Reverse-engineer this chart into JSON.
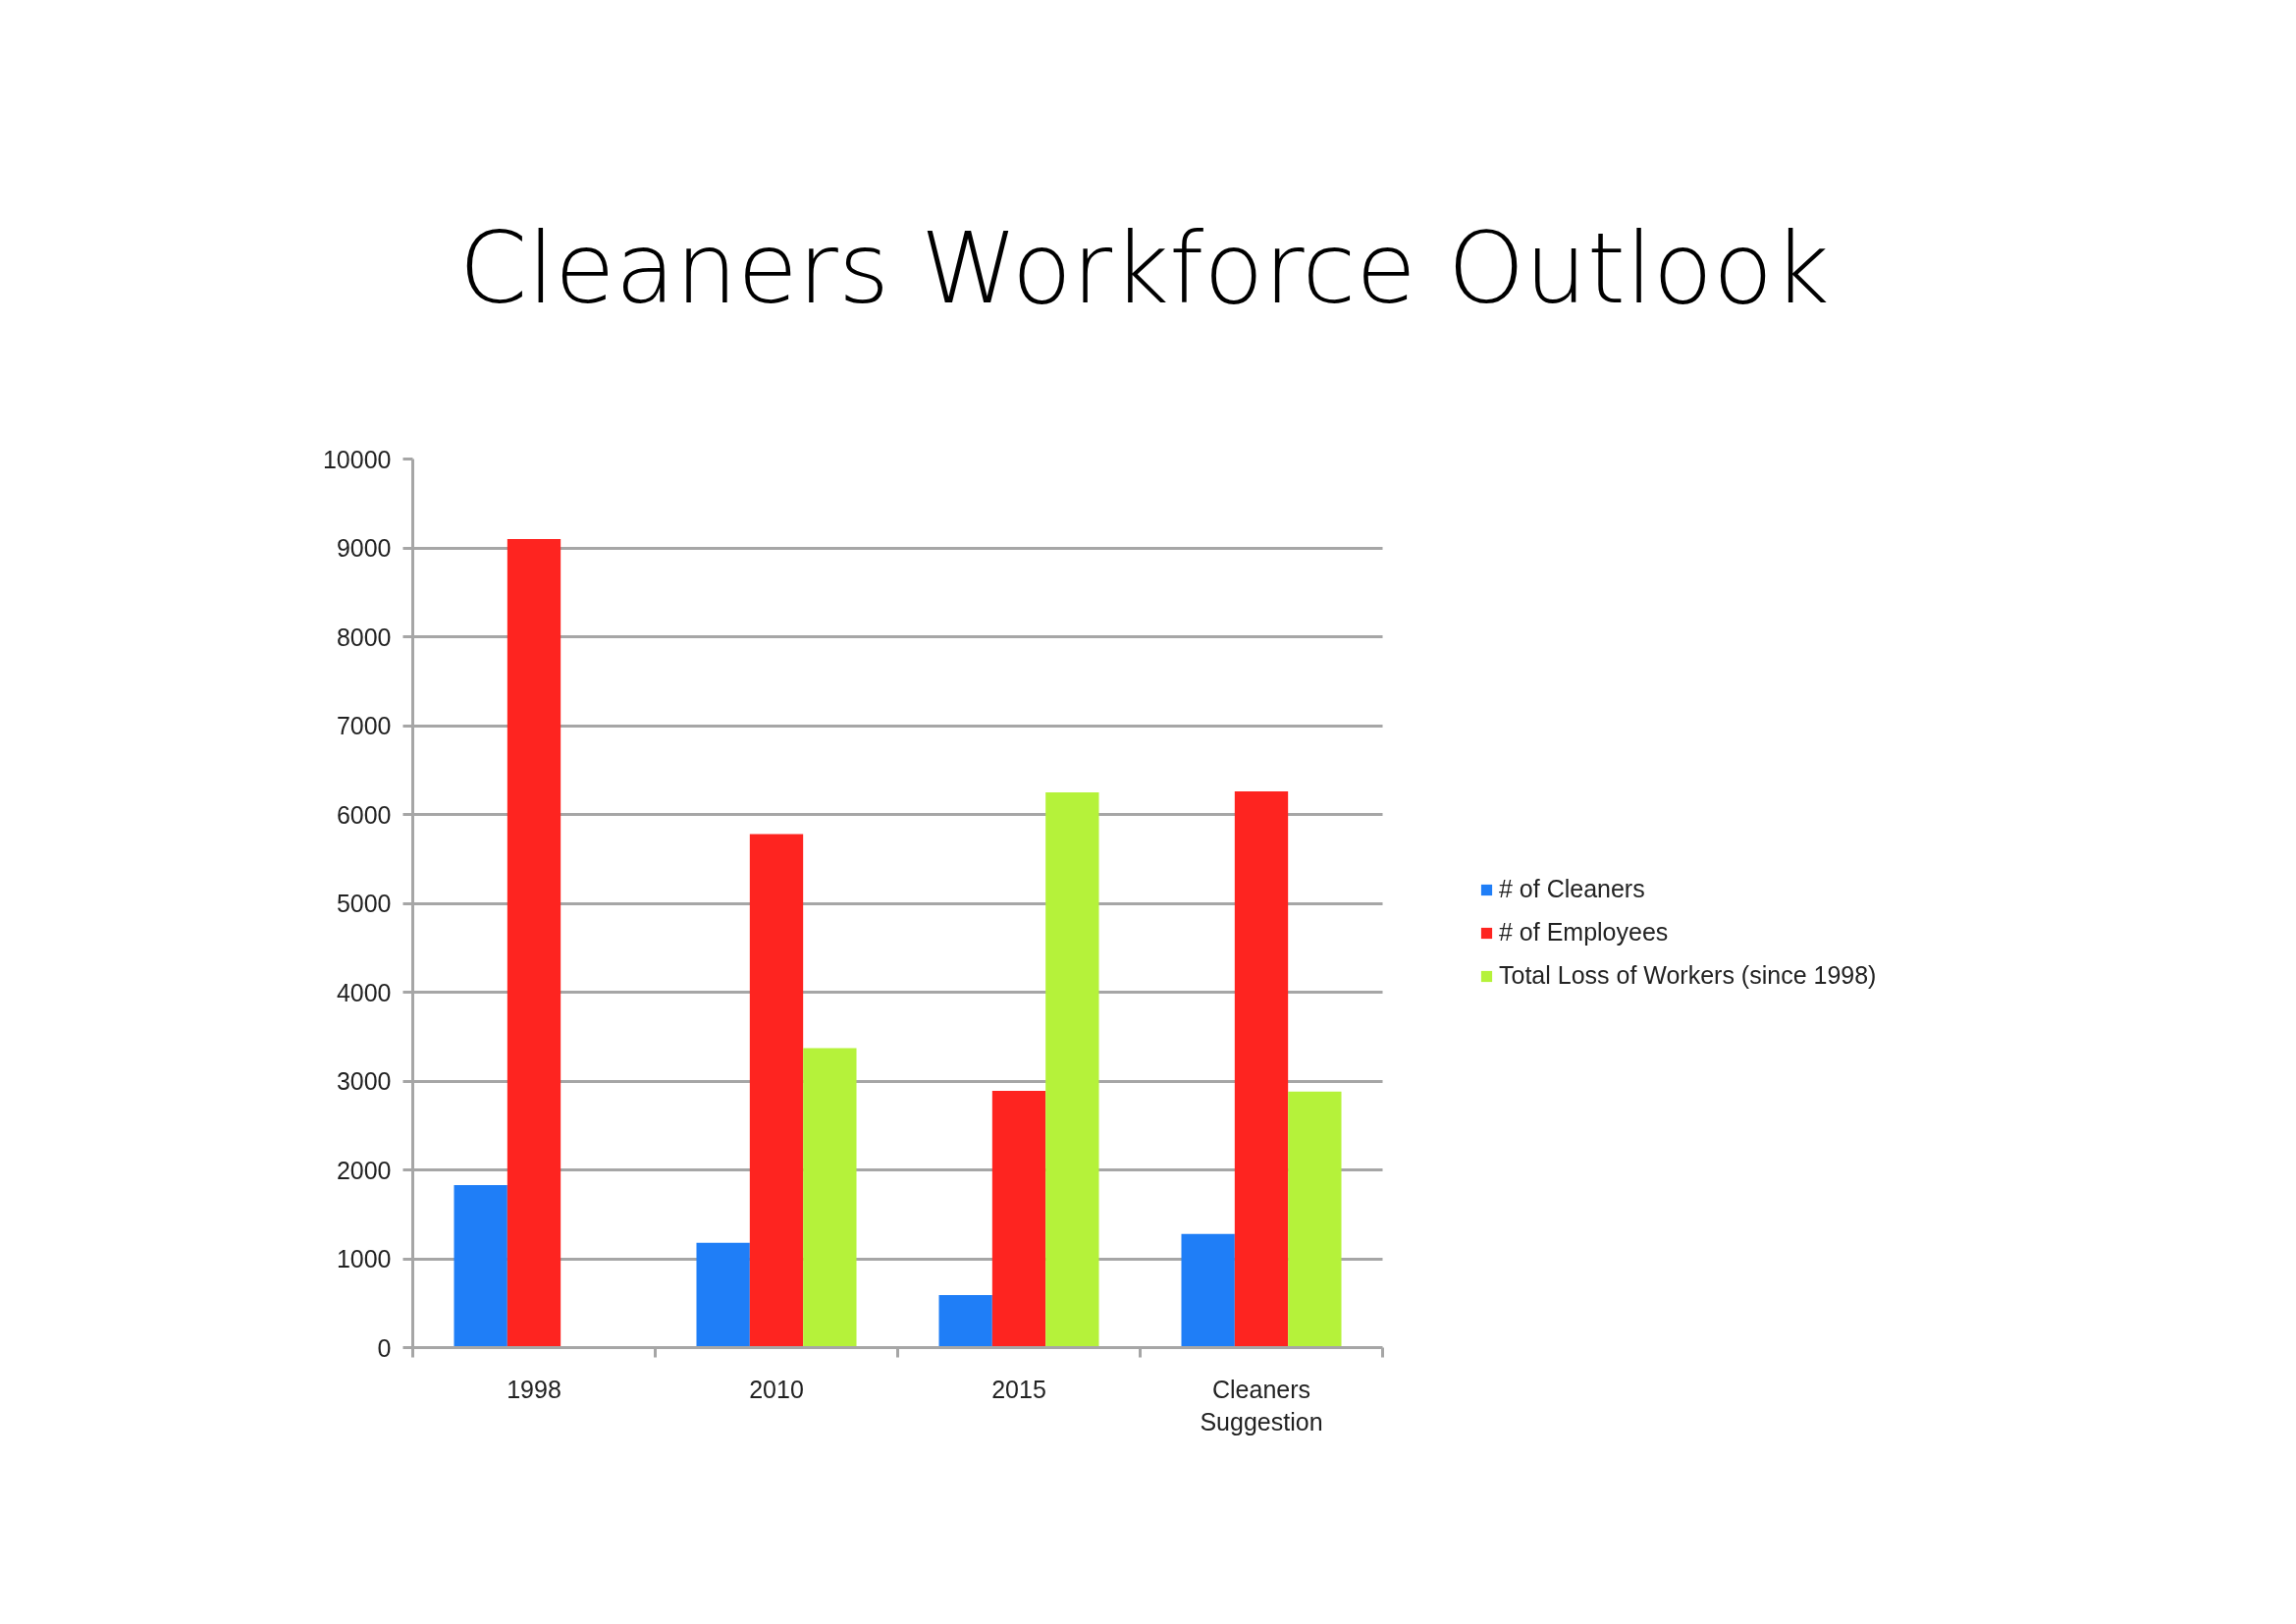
{
  "chart_data": {
    "type": "bar",
    "title": "Cleaners Workforce Outlook",
    "categories": [
      "1998",
      "2010",
      "2015",
      "Cleaners Suggestion"
    ],
    "series": [
      {
        "name": "# of Cleaners",
        "color": "#1f7ef7",
        "values": [
          1830,
          1180,
          590,
          1280
        ]
      },
      {
        "name": "# of Employees",
        "color": "#fe2420",
        "values": [
          9100,
          5780,
          2890,
          6260
        ]
      },
      {
        "name": "Total Loss of Workers (since 1998)",
        "color": "#b5f23a",
        "values": [
          null,
          3370,
          6250,
          2880
        ]
      }
    ],
    "ylim": [
      0,
      10000
    ],
    "yticks": [
      0,
      1000,
      2000,
      3000,
      4000,
      5000,
      6000,
      7000,
      8000,
      9000,
      10000
    ],
    "grid": "y",
    "legend": "right"
  }
}
